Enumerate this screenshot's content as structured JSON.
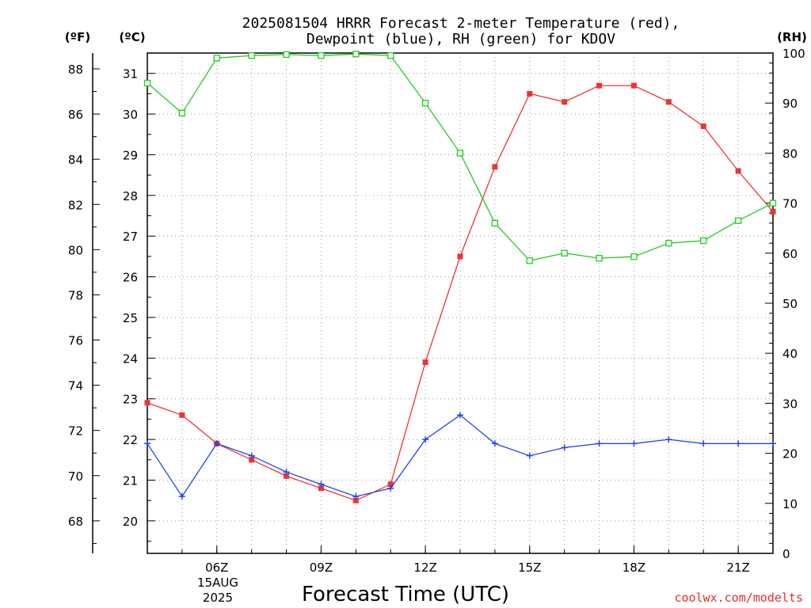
{
  "chart_data": {
    "type": "line",
    "title_line1": "2025081504 HRRR Forecast 2-meter Temperature (red),",
    "title_line2": "Dewpoint (blue), RH (green) for KDOV",
    "xlabel": "Forecast Time (UTC)",
    "credit": "coolwx.com/modelts",
    "units": {
      "fahrenheit": "(ºF)",
      "celsius": "(ºC)",
      "rh": "(RH)"
    },
    "x_hours": [
      4,
      5,
      6,
      7,
      8,
      9,
      10,
      11,
      12,
      13,
      14,
      15,
      16,
      17,
      18,
      19,
      20,
      21,
      22
    ],
    "xlim": [
      4,
      22
    ],
    "x_ticks": [
      {
        "hour": 6,
        "label": "06Z"
      },
      {
        "hour": 9,
        "label": "09Z"
      },
      {
        "hour": 12,
        "label": "12Z"
      },
      {
        "hour": 15,
        "label": "15Z"
      },
      {
        "hour": 18,
        "label": "18Z"
      },
      {
        "hour": 21,
        "label": "21Z"
      }
    ],
    "date_label": [
      "15AUG",
      "2025"
    ],
    "celsius_range": [
      19.2,
      31.5
    ],
    "fahrenheit_ticks": [
      "68",
      "70",
      "72",
      "74",
      "76",
      "78",
      "80",
      "82",
      "84",
      "86",
      "88"
    ],
    "celsius_ticks": [
      "20",
      "21",
      "22",
      "23",
      "24",
      "25",
      "26",
      "27",
      "28",
      "29",
      "30",
      "31"
    ],
    "rh_range": [
      0,
      100
    ],
    "rh_ticks": [
      "0",
      "10",
      "20",
      "30",
      "40",
      "50",
      "60",
      "70",
      "80",
      "90",
      "100"
    ],
    "grid": true,
    "series": [
      {
        "name": "Temperature",
        "axis": "celsius",
        "color": "#ee3333",
        "marker": "filled-square",
        "values": [
          22.9,
          22.6,
          21.9,
          21.5,
          21.1,
          20.8,
          20.5,
          20.9,
          23.9,
          26.5,
          28.7,
          30.5,
          30.3,
          30.7,
          30.7,
          30.3,
          29.7,
          28.6,
          27.6
        ]
      },
      {
        "name": "Dewpoint",
        "axis": "celsius",
        "color": "#2244ee",
        "marker": "plus",
        "values": [
          21.9,
          20.6,
          21.9,
          21.6,
          21.2,
          20.9,
          20.6,
          20.8,
          22.0,
          22.6,
          21.9,
          21.6,
          21.8,
          21.9,
          21.9,
          22.0,
          21.9,
          21.9,
          21.9
        ]
      },
      {
        "name": "Relative Humidity",
        "axis": "rh",
        "color": "#22cc22",
        "marker": "open-square",
        "values": [
          94,
          88,
          99,
          99.5,
          99.7,
          99.5,
          99.8,
          99.5,
          90,
          80,
          66,
          58.5,
          60,
          59,
          59.3,
          62,
          62.5,
          66.5,
          70
        ]
      }
    ]
  }
}
